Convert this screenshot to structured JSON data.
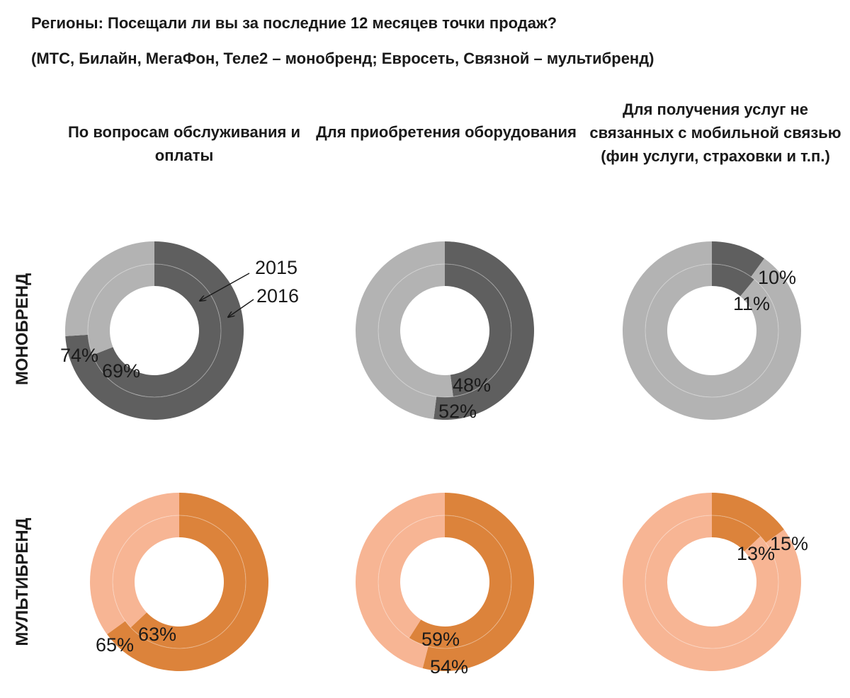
{
  "title_line1": "Регионы: Посещали ли вы за последние 12 месяцев точки продаж?",
  "title_line2": "(МТС, Билайн, МегаФон, Теле2 – монобренд; Евросеть, Связной – мультибренд)",
  "columns": [
    "По вопросам обслуживания и оплаты",
    "Для приобретения оборудования",
    "Для получения услуг не связанных с мобильной связью (фин услуги, страховки и т.п.)"
  ],
  "rows": [
    "МОНОБРЕНД",
    "МУЛЬТИБРЕНД"
  ],
  "colors": {
    "mono_main": "#5f5f5f",
    "mono_rest": "#b3b3b3",
    "multi_main": "#dc833b",
    "multi_rest": "#f7b594"
  },
  "legend": {
    "inner": "2015",
    "outer": "2016"
  },
  "chart_data": [
    {
      "type": "donut",
      "row": "МОНОБРЕНД",
      "column": "По вопросам обслуживания и оплаты",
      "series": [
        {
          "name": "2015",
          "ring": "inner",
          "value": 69,
          "label": "69%"
        },
        {
          "name": "2016",
          "ring": "outer",
          "value": 74,
          "label": "74%"
        }
      ]
    },
    {
      "type": "donut",
      "row": "МОНОБРЕНД",
      "column": "Для приобретения оборудования",
      "series": [
        {
          "name": "2015",
          "ring": "inner",
          "value": 48,
          "label": "48%"
        },
        {
          "name": "2016",
          "ring": "outer",
          "value": 52,
          "label": "52%"
        }
      ]
    },
    {
      "type": "donut",
      "row": "МОНОБРЕНД",
      "column": "Для получения услуг не связанных с мобильной связью (фин услуги, страховки и т.п.)",
      "series": [
        {
          "name": "2015",
          "ring": "inner",
          "value": 11,
          "label": "11%"
        },
        {
          "name": "2016",
          "ring": "outer",
          "value": 10,
          "label": "10%"
        }
      ]
    },
    {
      "type": "donut",
      "row": "МУЛЬТИБРЕНД",
      "column": "По вопросам обслуживания и оплаты",
      "series": [
        {
          "name": "2015",
          "ring": "inner",
          "value": 63,
          "label": "63%"
        },
        {
          "name": "2016",
          "ring": "outer",
          "value": 65,
          "label": "65%"
        }
      ]
    },
    {
      "type": "donut",
      "row": "МУЛЬТИБРЕНД",
      "column": "Для приобретения оборудования",
      "series": [
        {
          "name": "2015",
          "ring": "inner",
          "value": 59,
          "label": "59%"
        },
        {
          "name": "2016",
          "ring": "outer",
          "value": 54,
          "label": "54%"
        }
      ]
    },
    {
      "type": "donut",
      "row": "МУЛЬТИБРЕНД",
      "column": "Для получения услуг не связанных с мобильной связью (фин услуги, страховки и т.п.)",
      "series": [
        {
          "name": "2015",
          "ring": "inner",
          "value": 13,
          "label": "13%"
        },
        {
          "name": "2016",
          "ring": "outer",
          "value": 15,
          "label": "15%"
        }
      ]
    }
  ]
}
